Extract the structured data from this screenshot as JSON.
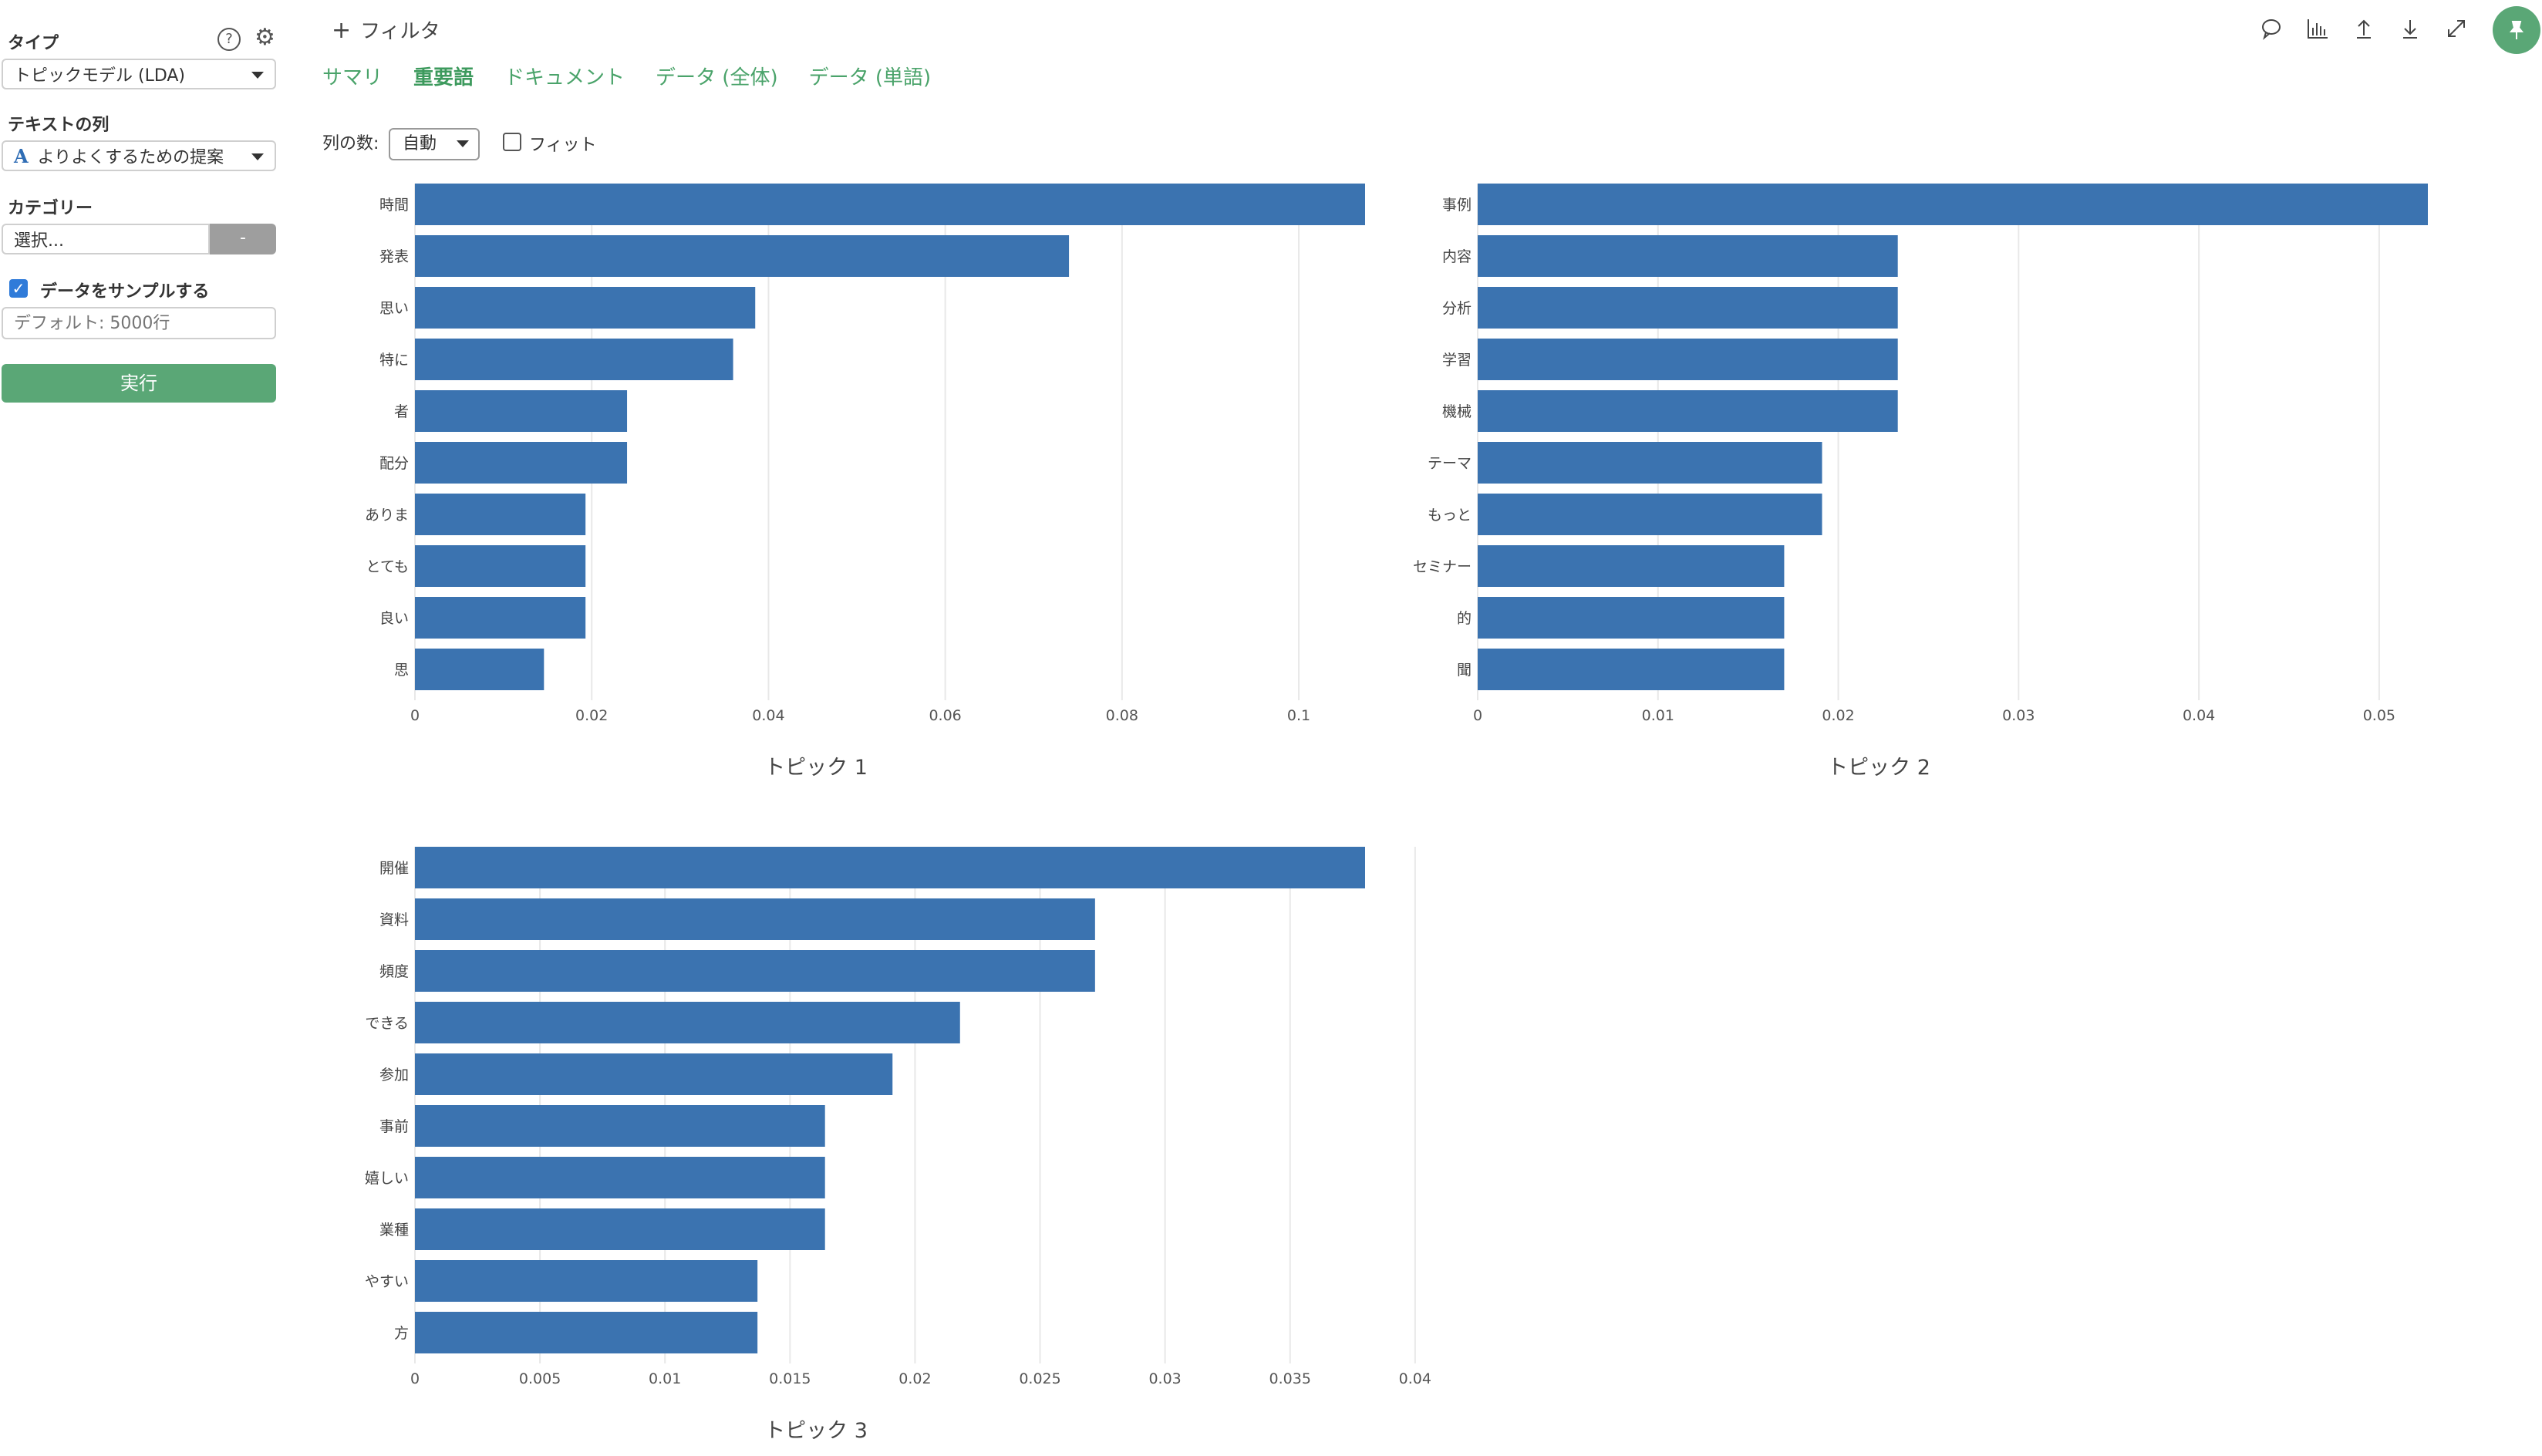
{
  "sidebar": {
    "type_label": "タイプ",
    "type_value": "トピックモデル (LDA)",
    "text_column_label": "テキストの列",
    "text_column_value": "よりよくするための提案",
    "text_column_icon": "A",
    "category_label": "カテゴリー",
    "category_placeholder": "選択...",
    "category_button": "-",
    "sample_label": "データをサンプルする",
    "sample_checked": true,
    "sample_placeholder": "デフォルト: 5000行",
    "run_label": "実行",
    "help_icon": "?",
    "settings_icon": "⚙"
  },
  "toolbar": {
    "filter_label": "フィルタ",
    "filter_icon": "+",
    "icons": [
      "comment-icon",
      "chart-icon",
      "upload-icon",
      "download-icon",
      "expand-icon",
      "pin-icon"
    ]
  },
  "tabs": [
    {
      "label": "サマリ",
      "active": false
    },
    {
      "label": "重要語",
      "active": true
    },
    {
      "label": "ドキュメント",
      "active": false
    },
    {
      "label": "データ (全体)",
      "active": false
    },
    {
      "label": "データ (単語)",
      "active": false
    }
  ],
  "options": {
    "column_count_label": "列の数:",
    "column_count_value": "自動",
    "fit_label": "フィット",
    "fit_checked": false
  },
  "colors": {
    "bar": "#3b73b0",
    "accent": "#5aa776",
    "grid": "#e8e8e8"
  },
  "chart_data": [
    {
      "type": "bar",
      "orientation": "horizontal",
      "title": "トピック 1",
      "categories": [
        "時間",
        "発表",
        "思い",
        "特に",
        "者",
        "配分",
        "ありま",
        "とても",
        "良い",
        "思"
      ],
      "values": [
        0.1075,
        0.074,
        0.0385,
        0.036,
        0.024,
        0.024,
        0.0193,
        0.0193,
        0.0193,
        0.0146
      ],
      "xlim": [
        0,
        0.1075
      ],
      "ticks": [
        0,
        0.02,
        0.04,
        0.06,
        0.08,
        0.1
      ],
      "tick_labels": [
        "0",
        "0.02",
        "0.04",
        "0.06",
        "0.08",
        "0.1"
      ],
      "grid": true
    },
    {
      "type": "bar",
      "orientation": "horizontal",
      "title": "トピック 2",
      "categories": [
        "事例",
        "内容",
        "分析",
        "学習",
        "機械",
        "テーマ",
        "もっと",
        "セミナー",
        "的",
        "聞"
      ],
      "values": [
        0.0527,
        0.0233,
        0.0233,
        0.0233,
        0.0233,
        0.0191,
        0.0191,
        0.017,
        0.017,
        0.017
      ],
      "xlim": [
        0,
        0.0527
      ],
      "ticks": [
        0,
        0.01,
        0.02,
        0.03,
        0.04,
        0.05
      ],
      "tick_labels": [
        "0",
        "0.01",
        "0.02",
        "0.03",
        "0.04",
        "0.05"
      ],
      "grid": true
    },
    {
      "type": "bar",
      "orientation": "horizontal",
      "title": "トピック 3",
      "categories": [
        "開催",
        "資料",
        "頻度",
        "できる",
        "参加",
        "事前",
        "嬉しい",
        "業種",
        "やすい",
        "方"
      ],
      "values": [
        0.038,
        0.0272,
        0.0272,
        0.0218,
        0.0191,
        0.0164,
        0.0164,
        0.0164,
        0.0137,
        0.0137
      ],
      "xlim": [
        0,
        0.038
      ],
      "ticks": [
        0,
        0.005,
        0.01,
        0.015,
        0.02,
        0.025,
        0.03,
        0.035,
        0.04
      ],
      "tick_labels": [
        "0",
        "0.005",
        "0.01",
        "0.015",
        "0.02",
        "0.025",
        "0.03",
        "0.035",
        "0.04"
      ],
      "grid": true
    }
  ]
}
